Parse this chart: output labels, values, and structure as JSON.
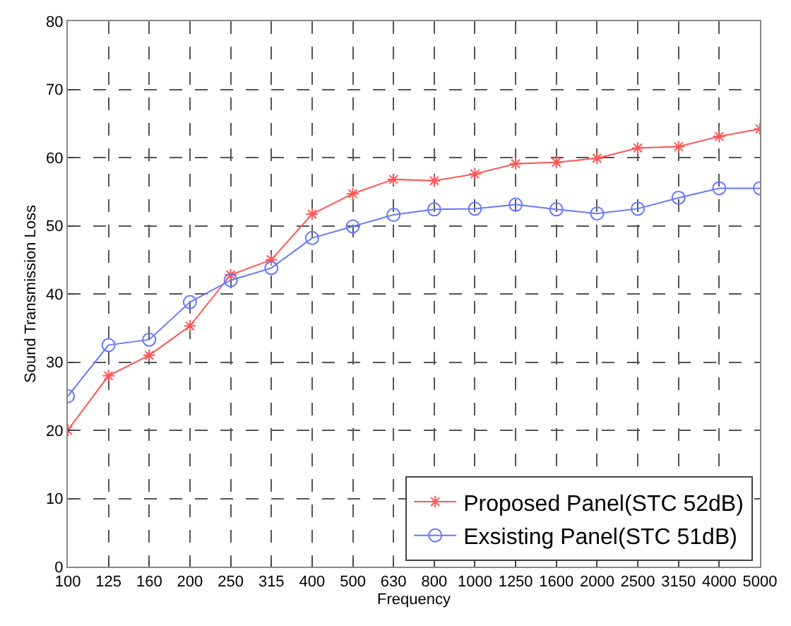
{
  "chart_data": {
    "type": "line",
    "xlabel": "Frequency",
    "ylabel": "Sound Transmission Loss",
    "categories": [
      "100",
      "125",
      "160",
      "200",
      "250",
      "315",
      "400",
      "500",
      "630",
      "800",
      "1000",
      "1250",
      "1600",
      "2000",
      "2500",
      "3150",
      "4000",
      "5000"
    ],
    "series": [
      {
        "name": "Proposed Panel(STC 52dB)",
        "color": "#ff5555",
        "marker": "cross",
        "values": [
          20,
          28,
          31,
          35.3,
          42.8,
          45,
          51.7,
          54.7,
          56.8,
          56.6,
          57.6,
          59.1,
          59.3,
          59.9,
          61.4,
          61.6,
          63.1,
          64.2
        ]
      },
      {
        "name": "Exsisting Panel(STC 51dB)",
        "color": "#6677ff",
        "marker": "circle",
        "values": [
          25,
          32.5,
          33.3,
          38.8,
          42,
          43.8,
          48.2,
          49.9,
          51.6,
          52.4,
          52.5,
          53.1,
          52.4,
          51.8,
          52.5,
          54.1,
          55.5,
          55.5
        ]
      }
    ],
    "ylim": [
      0,
      80
    ],
    "yticks": [
      0,
      10,
      20,
      30,
      40,
      50,
      60,
      70,
      80
    ],
    "grid": true,
    "legend": "bottom right",
    "line_style": "solid"
  }
}
